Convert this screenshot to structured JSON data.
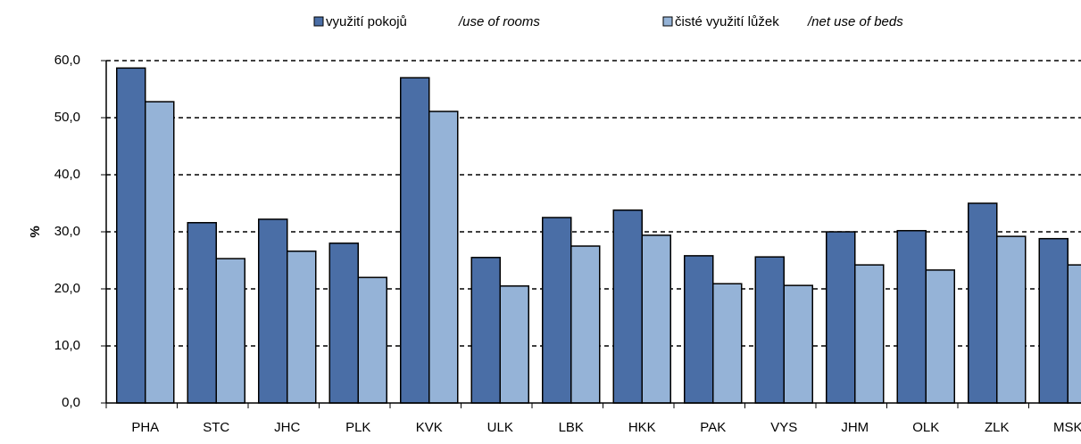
{
  "chart_data": {
    "type": "bar",
    "y_label": "%",
    "categories": [
      "PHA",
      "STC",
      "JHC",
      "PLK",
      "KVK",
      "ULK",
      "LBK",
      "HKK",
      "PAK",
      "VYS",
      "JHM",
      "OLK",
      "ZLK",
      "MSK"
    ],
    "series": [
      {
        "name": "využití pokojů",
        "name_en": "/use of rooms",
        "color": "#4a6ea6",
        "values": [
          58.7,
          31.6,
          32.2,
          28.0,
          57.0,
          25.5,
          32.5,
          33.8,
          25.8,
          25.6,
          30.0,
          30.2,
          35.0,
          28.8
        ]
      },
      {
        "name": "čisté využití lůžek",
        "name_en": "/net use of beds",
        "color": "#95b3d7",
        "values": [
          52.8,
          25.3,
          26.6,
          22.0,
          51.1,
          20.5,
          27.5,
          29.4,
          20.9,
          20.6,
          24.2,
          23.3,
          29.2,
          24.2
        ]
      }
    ],
    "ylim": [
      0,
      60
    ],
    "yticks": [
      {
        "value": 0,
        "label": "0,0"
      },
      {
        "value": 10,
        "label": "10,0"
      },
      {
        "value": 20,
        "label": "20,0"
      },
      {
        "value": 30,
        "label": "30,0"
      },
      {
        "value": 40,
        "label": "40,0"
      },
      {
        "value": 50,
        "label": "50,0"
      },
      {
        "value": 60,
        "label": "60,0"
      }
    ],
    "grid": true
  }
}
